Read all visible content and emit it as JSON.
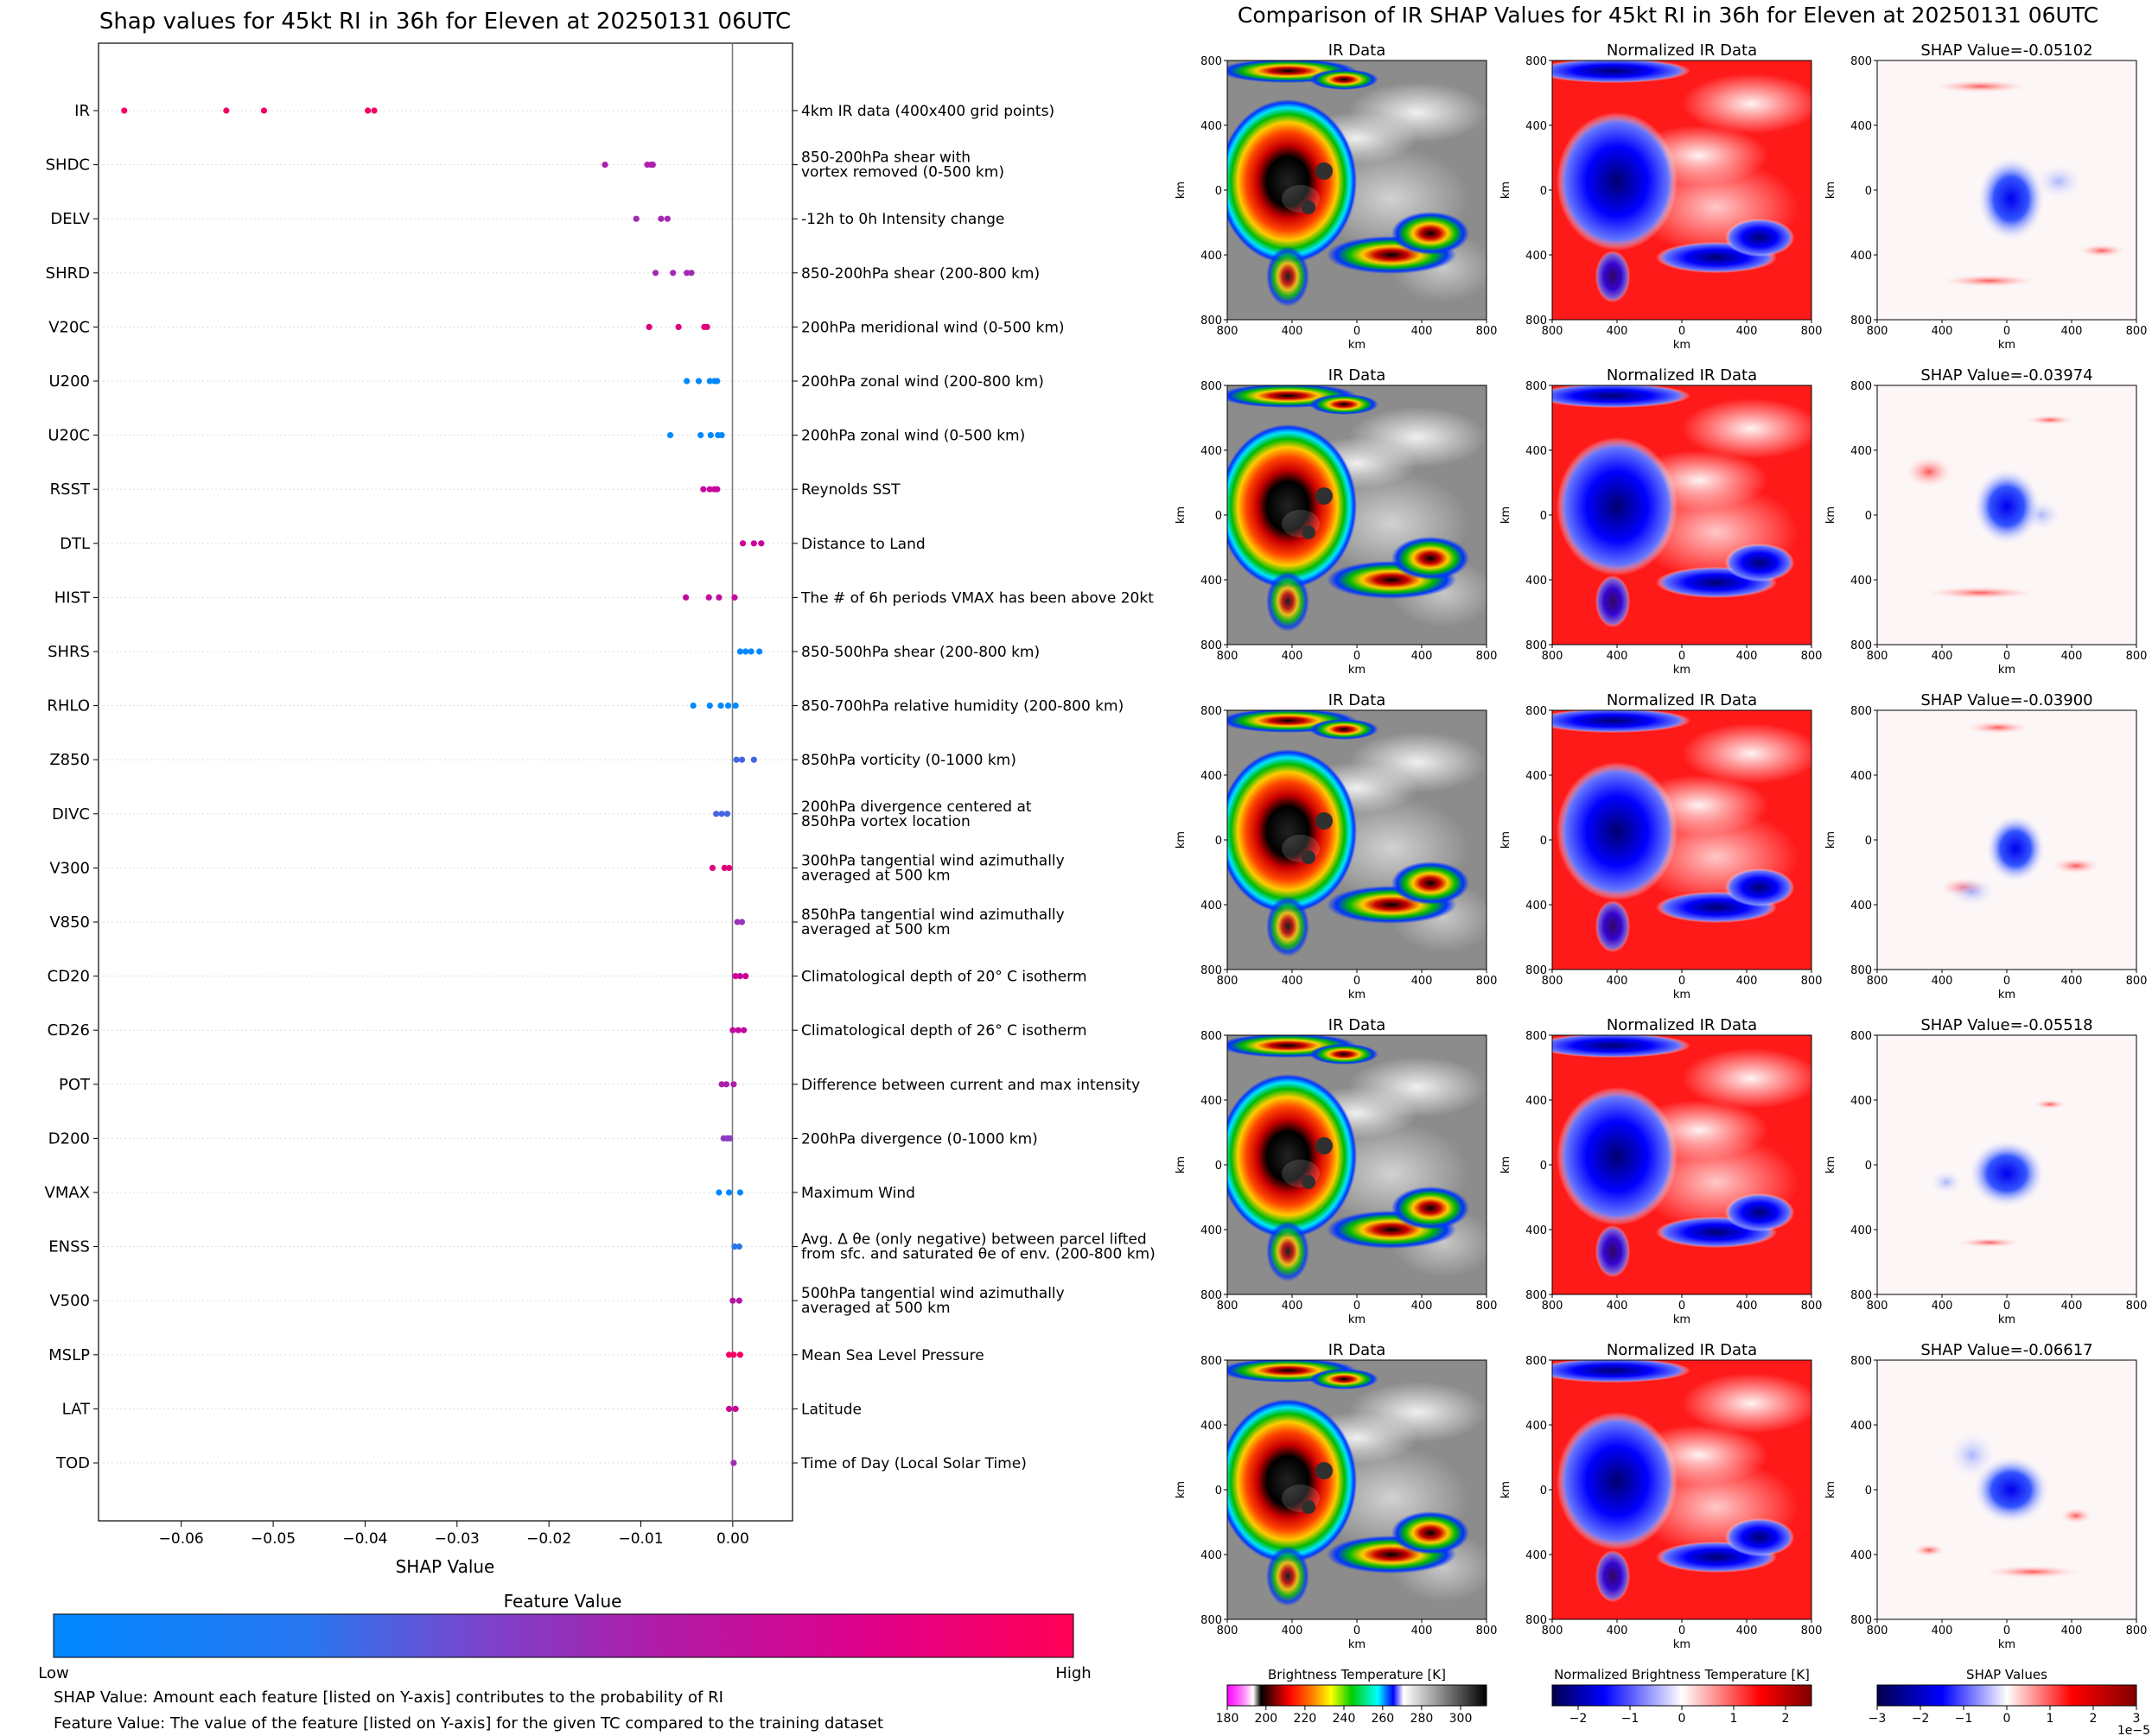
{
  "left": {
    "title": "Shap values for 45kt RI in 36h for Eleven at 20250131 06UTC",
    "xlabel": "SHAP Value",
    "colorbar_title": "Feature Value",
    "colorbar_low": "Low",
    "colorbar_high": "High",
    "footnote1": "SHAP Value: Amount each feature [listed on Y-axis] contributes to the probability of RI",
    "footnote2": "Feature Value: The value of the feature [listed on Y-axis] for the given TC compared to the training dataset"
  },
  "right": {
    "title": "Comparison of IR SHAP Values for 45kt RI in 36h for Eleven at 20250131 06UTC",
    "col1_title": "IR Data",
    "col2_title": "Normalized IR Data",
    "shap_titles": [
      "SHAP Value=-0.05102",
      "SHAP Value=-0.03974",
      "SHAP Value=-0.03900",
      "SHAP Value=-0.05518",
      "SHAP Value=-0.06617"
    ],
    "axis_label": "km",
    "ticks": [
      "800",
      "400",
      "0",
      "400",
      "800"
    ],
    "cb1": {
      "title": "Brightness Temperature [K]",
      "ticks": [
        "180",
        "200",
        "220",
        "240",
        "260",
        "280",
        "300"
      ]
    },
    "cb2": {
      "title": "Normalized Brightness Temperature [K]",
      "ticks": [
        "−2",
        "−1",
        "0",
        "1",
        "2"
      ]
    },
    "cb3": {
      "title": "SHAP Values",
      "ticks": [
        "−3",
        "−2",
        "−1",
        "0",
        "1",
        "2",
        "3"
      ],
      "offset": "1e−5"
    }
  },
  "chart_data": [
    {
      "type": "scatter",
      "title": "Shap values for 45kt RI in 36h for Eleven at 20250131 06UTC",
      "xlabel": "SHAP Value",
      "ylabel": "",
      "xlim": [
        -0.069,
        0.0065
      ],
      "xticks": [
        "−0.06",
        "−0.05",
        "−0.04",
        "−0.03",
        "−0.02",
        "−0.01",
        "0.00"
      ],
      "xtick_values": [
        -0.06,
        -0.05,
        -0.04,
        -0.03,
        -0.02,
        -0.01,
        0.0
      ],
      "colormap": [
        "#0088ff",
        "#4466e0",
        "#9933bb",
        "#cc0099",
        "#ff0055"
      ],
      "features": [
        {
          "name": "IR",
          "desc": [
            "4km IR data (400x400 grid points)"
          ],
          "x": [
            -0.0662,
            -0.0551,
            -0.051,
            -0.0397,
            -0.039
          ],
          "c": [
            0.95,
            0.95,
            0.95,
            0.95,
            0.95
          ]
        },
        {
          "name": "SHDC",
          "desc": [
            "850-200hPa shear with",
            "vortex removed (0-500 km)"
          ],
          "x": [
            -0.0139,
            -0.0093,
            -0.0089,
            -0.0087
          ],
          "c": [
            0.6,
            0.6,
            0.6,
            0.6
          ]
        },
        {
          "name": "DELV",
          "desc": [
            "-12h to 0h Intensity change"
          ],
          "x": [
            -0.0105,
            -0.0078,
            -0.0071
          ],
          "c": [
            0.55,
            0.55,
            0.55
          ]
        },
        {
          "name": "SHRD",
          "desc": [
            "850-200hPa shear (200-800 km)"
          ],
          "x": [
            -0.0084,
            -0.0065,
            -0.005,
            -0.0045
          ],
          "c": [
            0.55,
            0.55,
            0.55,
            0.55
          ]
        },
        {
          "name": "V20C",
          "desc": [
            "200hPa meridional wind (0-500 km)"
          ],
          "x": [
            -0.0091,
            -0.0059,
            -0.0031,
            -0.0028
          ],
          "c": [
            0.85,
            0.85,
            0.85,
            0.85
          ]
        },
        {
          "name": "U200",
          "desc": [
            "200hPa zonal wind (200-800 km)"
          ],
          "x": [
            -0.005,
            -0.0037,
            -0.0025,
            -0.002,
            -0.0017
          ],
          "c": [
            0.0,
            0.0,
            0.0,
            0.0,
            0.0
          ]
        },
        {
          "name": "U20C",
          "desc": [
            "200hPa zonal wind (0-500 km)"
          ],
          "x": [
            -0.0068,
            -0.0035,
            -0.0024,
            -0.0016,
            -0.0012
          ],
          "c": [
            0.0,
            0.0,
            0.0,
            0.0,
            0.0
          ]
        },
        {
          "name": "RSST",
          "desc": [
            "Reynolds SST"
          ],
          "x": [
            -0.0032,
            -0.0025,
            -0.002,
            -0.0017
          ],
          "c": [
            0.72,
            0.72,
            0.72,
            0.72
          ]
        },
        {
          "name": "DTL",
          "desc": [
            "Distance to Land"
          ],
          "x": [
            0.0011,
            0.0023,
            0.0031
          ],
          "c": [
            0.75,
            0.75,
            0.75
          ]
        },
        {
          "name": "HIST",
          "desc": [
            "The # of 6h periods VMAX has been above 20kt"
          ],
          "x": [
            -0.0051,
            -0.0026,
            -0.0015,
            0.0002
          ],
          "c": [
            0.7,
            0.7,
            0.7,
            0.7
          ]
        },
        {
          "name": "SHRS",
          "desc": [
            "850-500hPa shear (200-800 km)"
          ],
          "x": [
            0.0008,
            0.0014,
            0.002,
            0.0029
          ],
          "c": [
            0.0,
            0.0,
            0.0,
            0.0
          ]
        },
        {
          "name": "RHLO",
          "desc": [
            "850-700hPa relative humidity (200-800 km)"
          ],
          "x": [
            -0.0043,
            -0.0025,
            -0.0013,
            -0.0005,
            0.0003
          ],
          "c": [
            0.0,
            0.0,
            0.0,
            0.0,
            0.0
          ]
        },
        {
          "name": "Z850",
          "desc": [
            "850hPa vorticity (0-1000 km)"
          ],
          "x": [
            0.0004,
            0.001,
            0.0023
          ],
          "c": [
            0.25,
            0.25,
            0.25
          ]
        },
        {
          "name": "DIVC",
          "desc": [
            "200hPa divergence centered at",
            "850hPa vortex location"
          ],
          "x": [
            -0.0018,
            -0.0012,
            -0.0006
          ],
          "c": [
            0.25,
            0.25,
            0.25
          ]
        },
        {
          "name": "V300",
          "desc": [
            "300hPa tangential wind azimuthally",
            "averaged at 500 km"
          ],
          "x": [
            -0.0022,
            -0.0009,
            -0.0004
          ],
          "c": [
            0.85,
            0.85,
            0.85
          ]
        },
        {
          "name": "V850",
          "desc": [
            "850hPa tangential wind azimuthally",
            "averaged at 500 km"
          ],
          "x": [
            0.0005,
            0.001
          ],
          "c": [
            0.5,
            0.5
          ]
        },
        {
          "name": "CD20",
          "desc": [
            "Climatological depth of 20° C isotherm"
          ],
          "x": [
            0.0003,
            0.0008,
            0.0014
          ],
          "c": [
            0.75,
            0.75,
            0.75
          ]
        },
        {
          "name": "CD26",
          "desc": [
            "Climatological depth of 26° C isotherm"
          ],
          "x": [
            0.0,
            0.0006,
            0.0012
          ],
          "c": [
            0.7,
            0.7,
            0.7
          ]
        },
        {
          "name": "POT",
          "desc": [
            "Difference between current and max intensity"
          ],
          "x": [
            -0.0012,
            -0.0007,
            0.0001
          ],
          "c": [
            0.6,
            0.6,
            0.6
          ]
        },
        {
          "name": "D200",
          "desc": [
            "200hPa divergence (0-1000 km)"
          ],
          "x": [
            -0.001,
            -0.0006,
            -0.0003
          ],
          "c": [
            0.45,
            0.45,
            0.45
          ]
        },
        {
          "name": "VMAX",
          "desc": [
            "Maximum Wind"
          ],
          "x": [
            -0.0015,
            -0.0004,
            0.0008
          ],
          "c": [
            0.0,
            0.0,
            0.0
          ]
        },
        {
          "name": "ENSS",
          "desc": [
            "Avg. Δ θe (only negative) between parcel lifted",
            "from sfc. and saturated θe of env. (200-800 km)"
          ],
          "x": [
            0.0002,
            0.0007
          ],
          "c": [
            0.15,
            0.15
          ]
        },
        {
          "name": "V500",
          "desc": [
            "500hPa tangential wind azimuthally",
            "averaged at 500 km"
          ],
          "x": [
            0.0,
            0.0007
          ],
          "c": [
            0.65,
            0.65
          ]
        },
        {
          "name": "MSLP",
          "desc": [
            "Mean Sea Level Pressure"
          ],
          "x": [
            -0.0004,
            0.0001,
            0.0008
          ],
          "c": [
            0.95,
            0.95,
            0.95
          ]
        },
        {
          "name": "LAT",
          "desc": [
            "Latitude"
          ],
          "x": [
            -0.0004,
            0.0003
          ],
          "c": [
            0.75,
            0.75
          ]
        },
        {
          "name": "TOD",
          "desc": [
            "Time of Day (Local Solar Time)"
          ],
          "x": [
            0.0001
          ],
          "c": [
            0.55
          ]
        }
      ]
    },
    {
      "type": "heatmap",
      "title": "Comparison of IR SHAP Values for 45kt RI in 36h for Eleven at 20250131 06UTC",
      "panels": [
        "IR Data",
        "Normalized IR Data",
        "SHAP Value=-0.05102",
        "SHAP Value=-0.03974",
        "SHAP Value=-0.03900",
        "SHAP Value=-0.05518",
        "SHAP Value=-0.06617"
      ],
      "xlabel": "km",
      "ylabel": "km",
      "xlim": [
        -800,
        800
      ],
      "ylim": [
        -800,
        800
      ]
    }
  ]
}
